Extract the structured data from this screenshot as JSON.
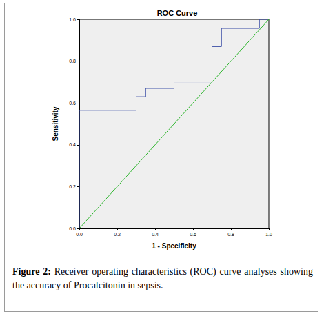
{
  "chart_data": {
    "type": "line",
    "title": "ROC Curve",
    "x_label": "1 - Specificity",
    "y_label": "Sensitivity",
    "caption_label": "Figure 2:",
    "caption": "Receiver operating characteristics (ROC) curve analyses showing the accuracy of Procalcitonin in sepsis.",
    "xlim": [
      0,
      1
    ],
    "ylim": [
      0,
      1
    ],
    "xticks": [
      {
        "value": 0,
        "label": "0.0"
      },
      {
        "value": 0.2,
        "label": "0.2"
      },
      {
        "value": 0.4,
        "label": "0.4"
      },
      {
        "value": 0.6,
        "label": "0.6"
      },
      {
        "value": 0.8,
        "label": "0.8"
      },
      {
        "value": 1,
        "label": "1.0"
      }
    ],
    "yticks": [
      {
        "value": 0,
        "label": "0.0"
      },
      {
        "value": 0.2,
        "label": "0.2"
      },
      {
        "value": 0.4,
        "label": "0.4"
      },
      {
        "value": 0.6,
        "label": "0.6"
      },
      {
        "value": 0.8,
        "label": "0.8"
      },
      {
        "value": 1,
        "label": "1.0"
      }
    ],
    "grid": false,
    "series": [
      {
        "color": "#3b4ea6",
        "line_style": "solid",
        "x": [
          0,
          0,
          0.3,
          0.3,
          0.35,
          0.35,
          0.5,
          0.5,
          0.7,
          0.7,
          0.75,
          0.75,
          0.95,
          0.95,
          1
        ],
        "values": [
          0,
          0.565,
          0.565,
          0.63,
          0.63,
          0.67,
          0.67,
          0.695,
          0.695,
          0.87,
          0.87,
          0.957,
          0.957,
          1,
          1
        ]
      },
      {
        "color": "#2fb52f",
        "line_style": "solid",
        "x": [
          0,
          1
        ],
        "values": [
          0,
          1
        ]
      }
    ]
  }
}
